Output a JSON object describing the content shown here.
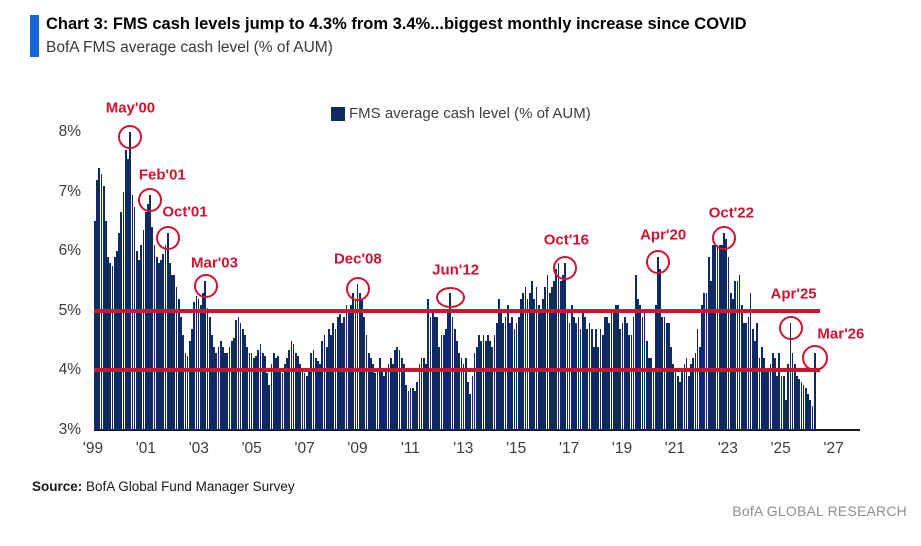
{
  "header": {
    "title": "Chart 3: FMS cash levels jump to 4.3% from 3.4%...biggest monthly increase since COVID",
    "subtitle": "BofA FMS average cash level (% of AUM)"
  },
  "legend": {
    "label": "FMS average cash level (% of AUM)"
  },
  "chart_data": {
    "type": "bar",
    "title": "BofA FMS average cash level (% of AUM)",
    "frequency": "monthly",
    "series_start": "Jan 1999",
    "series_end": "Mar 2026",
    "ylabel": "Cash level (% of AUM)",
    "ylim": [
      3,
      8.5
    ],
    "y_ticks": [
      "8%",
      "7%",
      "6%",
      "5%",
      "4%",
      "3%"
    ],
    "x_ticks": [
      "'99",
      "'01",
      "'03",
      "'05",
      "'07",
      "'09",
      "'11",
      "'13",
      "'15",
      "'17",
      "'19",
      "'21",
      "'23",
      "'25",
      "'27"
    ],
    "hlines": [
      5,
      4
    ],
    "values": [
      6.5,
      7.2,
      7.4,
      7.3,
      7.1,
      6.5,
      5.9,
      5.8,
      5.75,
      5.9,
      6.0,
      6.3,
      6.65,
      7.0,
      7.7,
      7.55,
      8.0,
      6.95,
      6.75,
      6.0,
      5.85,
      6.1,
      6.35,
      6.65,
      6.8,
      6.95,
      6.4,
      6.1,
      5.9,
      5.8,
      5.85,
      5.95,
      6.1,
      6.3,
      5.8,
      5.6,
      5.6,
      5.4,
      5.2,
      4.9,
      4.6,
      4.3,
      4.25,
      4.5,
      4.7,
      5.15,
      5.25,
      5.2,
      5.1,
      5.3,
      5.5,
      5.05,
      4.9,
      4.6,
      4.4,
      4.3,
      4.4,
      4.5,
      4.4,
      4.3,
      4.3,
      4.4,
      4.5,
      4.55,
      4.85,
      4.9,
      4.8,
      4.7,
      4.6,
      4.4,
      4.3,
      4.3,
      4.2,
      4.25,
      4.35,
      4.45,
      4.3,
      4.25,
      3.95,
      3.75,
      4.1,
      4.3,
      4.2,
      4.25,
      4.0,
      3.95,
      4.1,
      4.2,
      4.35,
      4.5,
      4.45,
      4.3,
      4.25,
      4.1,
      4.0,
      3.95,
      3.9,
      4.0,
      4.3,
      4.35,
      4.2,
      4.15,
      4.1,
      4.5,
      4.6,
      4.4,
      4.7,
      4.6,
      4.8,
      4.7,
      4.9,
      4.95,
      4.8,
      4.9,
      5.1,
      5.0,
      5.1,
      5.3,
      5.2,
      5.45,
      5.3,
      5.2,
      4.9,
      4.6,
      4.3,
      4.2,
      4.1,
      3.95,
      4.0,
      4.2,
      4.0,
      3.9,
      4.0,
      4.1,
      4.2,
      4.1,
      4.35,
      4.4,
      4.35,
      4.2,
      4.1,
      3.75,
      3.65,
      3.7,
      3.7,
      3.65,
      3.8,
      4.1,
      4.2,
      4.2,
      4.1,
      5.2,
      4.9,
      5.0,
      4.9,
      4.9,
      4.4,
      4.6,
      4.6,
      4.7,
      5.0,
      5.3,
      4.9,
      4.7,
      4.5,
      4.3,
      4.2,
      4.1,
      4.2,
      3.8,
      3.6,
      3.9,
      4.3,
      4.4,
      4.6,
      4.5,
      4.6,
      4.5,
      4.6,
      4.5,
      4.4,
      4.6,
      4.8,
      5.2,
      5.0,
      4.8,
      4.9,
      5.1,
      4.8,
      4.9,
      4.7,
      4.8,
      4.9,
      5.2,
      5.3,
      5.4,
      5.2,
      5.3,
      5.5,
      5.2,
      5.4,
      5.1,
      5.0,
      5.2,
      5.4,
      5.6,
      5.3,
      5.4,
      5.5,
      5.7,
      5.8,
      5.5,
      5.6,
      5.8,
      5.0,
      4.8,
      5.1,
      4.9,
      4.8,
      4.9,
      4.7,
      5.0,
      4.9,
      4.7,
      4.8,
      4.7,
      4.4,
      4.7,
      4.4,
      4.7,
      4.6,
      4.9,
      4.9,
      4.8,
      5.0,
      5.0,
      5.1,
      5.1,
      4.7,
      4.8,
      4.9,
      4.8,
      4.6,
      4.6,
      4.9,
      5.6,
      5.2,
      5.1,
      4.9,
      5.0,
      4.5,
      4.2,
      4.2,
      4.0,
      5.1,
      5.9,
      5.7,
      4.9,
      4.9,
      4.8,
      4.8,
      4.4,
      4.1,
      4.0,
      3.9,
      3.8,
      4.0,
      4.1,
      4.2,
      3.9,
      4.1,
      4.2,
      4.3,
      4.7,
      4.4,
      5.1,
      5.3,
      5.3,
      5.9,
      5.5,
      6.1,
      6.1,
      6.1,
      6.1,
      6.1,
      6.3,
      6.2,
      5.9,
      5.3,
      5.2,
      5.5,
      5.5,
      5.6,
      5.1,
      4.8,
      4.8,
      4.9,
      5.3,
      4.7,
      4.5,
      4.8,
      4.2,
      4.4,
      4.2,
      4.0,
      4.0,
      4.1,
      4.3,
      4.2,
      3.9,
      4.3,
      3.9,
      3.9,
      3.5,
      4.1,
      4.8,
      4.3,
      4.1,
      3.9,
      3.85,
      3.8,
      3.75,
      3.7,
      3.6,
      3.5,
      3.4,
      4.3
    ],
    "annotations": [
      {
        "label": "May'00",
        "month_index": 16,
        "value": 8.0
      },
      {
        "label": "Feb'01",
        "month_index": 25,
        "value": 6.95
      },
      {
        "label": "Oct'01",
        "month_index": 33,
        "value": 6.3
      },
      {
        "label": "Mar'03",
        "month_index": 50,
        "value": 5.5
      },
      {
        "label": "Dec'08",
        "month_index": 119,
        "value": 5.45
      },
      {
        "label": "Jun'12",
        "month_index": 161,
        "value": 5.3
      },
      {
        "label": "Oct'16",
        "month_index": 213,
        "value": 5.8
      },
      {
        "label": "Apr'20",
        "month_index": 255,
        "value": 5.9
      },
      {
        "label": "Oct'22",
        "month_index": 285,
        "value": 6.3
      },
      {
        "label": "Apr'25",
        "month_index": 315,
        "value": 4.8
      },
      {
        "label": "Mar'26",
        "month_index": 326,
        "value": 4.3
      }
    ]
  },
  "footer": {
    "source_label": "Source:",
    "source_text": " BofA Global Fund Manager Survey",
    "brand": "BofA GLOBAL RESEARCH"
  },
  "colors": {
    "bar": "#0f2a63",
    "red": "#d11230",
    "accent_blue": "#1565dd",
    "axis": "#1a1a1a"
  }
}
